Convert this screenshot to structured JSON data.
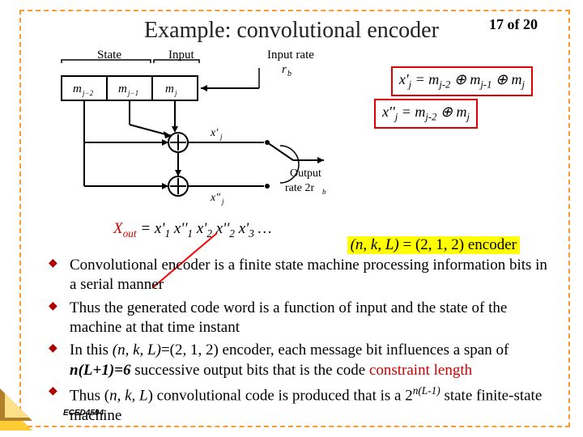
{
  "page": {
    "title": "Example: convolutional encoder",
    "number": "17 of 20",
    "footer": "ECED4504"
  },
  "diagram": {
    "labels": {
      "state": "State",
      "input": "Input",
      "input_rate": "Input rate",
      "rb": "r_b",
      "mj2": "m_{j-2}",
      "mj1": "m_{j-1}",
      "mj": "m_j",
      "xj1": "x'_j",
      "xj2": "x''_j",
      "output": "Output",
      "out_rate": "rate 2r_b"
    },
    "stroke": "#000000",
    "fill": "#ffffff"
  },
  "equations": {
    "eq1_html": "x'<sub>j</sub> = m<sub>j-2</sub> ⊕ m<sub>j-1</sub> ⊕ m<sub>j</sub>",
    "eq2_html": "x''<sub>j</sub> = m<sub>j-2</sub> ⊕ m<sub>j</sub>",
    "border_color": "#e00000"
  },
  "xout": {
    "label": "X_{out}",
    "rhs_html": " = x'<sub>1</sub> x''<sub>1</sub> x'<sub>2</sub> x''<sub>2</sub> x'<sub>3</sub> …",
    "label_color": "#d00000"
  },
  "tuple": {
    "text": "(n, k, L) = (2, 1, 2) encoder",
    "highlight": "#ffff00"
  },
  "bullets": [
    "Convolutional encoder is a finite state machine processing information bits in a serial manner",
    "Thus the generated code word is a function of input and the state of the machine at that time instant",
    "In this (n, k, L)=(2, 1, 2) encoder, each message bit influences a span of n(L+1)=6 successive output bits that is the code constraint length",
    "Thus (n, k, L) convolutional code is produced that is a 2^{n(L-1)} state finite-state machine"
  ],
  "bullet_formatted": {
    "b2_html": "In this <i>(n, k, L)</i>=(2, 1, 2) encoder, each message bit influences a span of <b><i>n(L+1)=6</i></b> successive output bits that is the code <span style='color:#d00000'>constraint length</span>",
    "b3_html": "Thus (<i>n, k, L</i>) convolutional code is produced that is a 2<sup><i>n(L-1)</i></sup> state finite-state machine"
  },
  "colors": {
    "frame": "#ff9933",
    "bullet_marker": "#b00000",
    "red_line": "#ff0000"
  }
}
